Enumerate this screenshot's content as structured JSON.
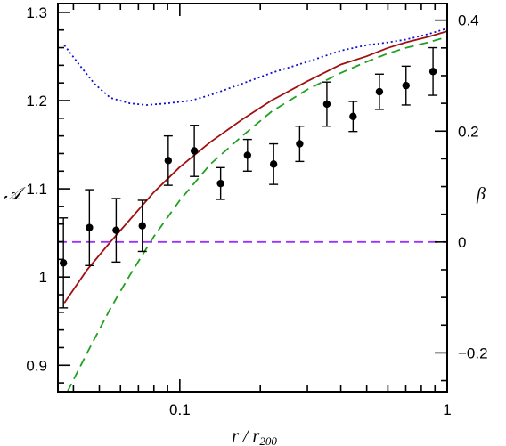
{
  "chart_data": {
    "type": "scatter",
    "title": "",
    "xlabel": "r / r",
    "xlabel_sub": "200",
    "ylabel_left": "𝒜",
    "ylabel_right": "β",
    "x_scale": "log",
    "xlim": [
      0.035,
      1.0
    ],
    "ylim_left": [
      0.87,
      1.31
    ],
    "ylim_right": [
      -0.27,
      0.43
    ],
    "x_ticks": [
      {
        "value": 0.1,
        "label": "0.1"
      },
      {
        "value": 1.0,
        "label": "1"
      }
    ],
    "y_left_ticks": [
      {
        "value": 0.9,
        "label": "0.9"
      },
      {
        "value": 1.0,
        "label": "1"
      },
      {
        "value": 1.1,
        "label": "1.1"
      },
      {
        "value": 1.2,
        "label": "1.2"
      },
      {
        "value": 1.3,
        "label": "1.3"
      }
    ],
    "y_right_ticks": [
      {
        "value": -0.2,
        "label": "−0.2"
      },
      {
        "value": 0.0,
        "label": "0"
      },
      {
        "value": 0.2,
        "label": "0.2"
      },
      {
        "value": 0.4,
        "label": "0.4"
      }
    ],
    "grid": false,
    "legend": "none",
    "series": [
      {
        "style": "points-with-errorbars",
        "axis": "left",
        "color": "#000000",
        "points": [
          {
            "x": 0.0367,
            "y": 1.016,
            "yerr": 0.051
          },
          {
            "x": 0.0459,
            "y": 1.056,
            "yerr": 0.043
          },
          {
            "x": 0.0578,
            "y": 1.053,
            "yerr": 0.036
          },
          {
            "x": 0.0724,
            "y": 1.058,
            "yerr": 0.029
          },
          {
            "x": 0.0905,
            "y": 1.132,
            "yerr": 0.028
          },
          {
            "x": 0.1133,
            "y": 1.143,
            "yerr": 0.029
          },
          {
            "x": 0.1421,
            "y": 1.106,
            "yerr": 0.018
          },
          {
            "x": 0.1791,
            "y": 1.138,
            "yerr": 0.018
          },
          {
            "x": 0.2243,
            "y": 1.128,
            "yerr": 0.023
          },
          {
            "x": 0.2807,
            "y": 1.151,
            "yerr": 0.02
          },
          {
            "x": 0.3548,
            "y": 1.196,
            "yerr": 0.025
          },
          {
            "x": 0.4446,
            "y": 1.182,
            "yerr": 0.017
          },
          {
            "x": 0.5579,
            "y": 1.21,
            "yerr": 0.02
          },
          {
            "x": 0.7014,
            "y": 1.217,
            "yerr": 0.022
          },
          {
            "x": 0.8851,
            "y": 1.233,
            "yerr": 0.027
          }
        ]
      },
      {
        "style": "solid",
        "axis": "right",
        "color": "#a01010",
        "x": [
          0.037,
          0.045,
          0.055,
          0.065,
          0.08,
          0.1,
          0.13,
          0.17,
          0.22,
          0.3,
          0.4,
          0.5,
          0.6,
          0.7,
          0.85,
          1.0
        ],
        "y": [
          -0.11,
          -0.05,
          0.0,
          0.04,
          0.09,
          0.135,
          0.18,
          0.22,
          0.255,
          0.29,
          0.32,
          0.335,
          0.35,
          0.36,
          0.37,
          0.38
        ]
      },
      {
        "style": "dashed",
        "axis": "right",
        "color": "#20a020",
        "x": [
          0.038,
          0.045,
          0.055,
          0.065,
          0.08,
          0.1,
          0.13,
          0.17,
          0.22,
          0.3,
          0.4,
          0.5,
          0.6,
          0.7,
          0.85,
          1.0
        ],
        "y": [
          -0.27,
          -0.2,
          -0.12,
          -0.06,
          0.01,
          0.075,
          0.14,
          0.19,
          0.235,
          0.275,
          0.305,
          0.325,
          0.34,
          0.35,
          0.36,
          0.37
        ]
      },
      {
        "style": "dotted",
        "axis": "right",
        "color": "#1010d0",
        "x": [
          0.037,
          0.042,
          0.048,
          0.055,
          0.065,
          0.075,
          0.09,
          0.11,
          0.13,
          0.17,
          0.22,
          0.3,
          0.4,
          0.5,
          0.6,
          0.7,
          0.85,
          1.0
        ],
        "y": [
          0.355,
          0.32,
          0.285,
          0.26,
          0.25,
          0.247,
          0.25,
          0.255,
          0.265,
          0.285,
          0.305,
          0.325,
          0.345,
          0.355,
          0.36,
          0.365,
          0.375,
          0.385
        ]
      },
      {
        "style": "dashed",
        "axis": "right",
        "color": "#9933ff",
        "x": [
          0.035,
          1.0
        ],
        "y": [
          0.0,
          0.0
        ]
      }
    ]
  }
}
